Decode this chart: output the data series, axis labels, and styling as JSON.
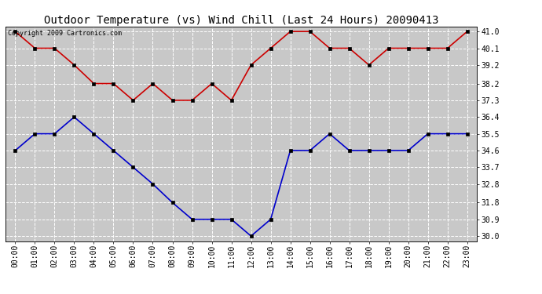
{
  "title": "Outdoor Temperature (vs) Wind Chill (Last 24 Hours) 20090413",
  "copyright": "Copyright 2009 Cartronics.com",
  "x_labels": [
    "00:00",
    "01:00",
    "02:00",
    "03:00",
    "04:00",
    "05:00",
    "06:00",
    "07:00",
    "08:00",
    "09:00",
    "10:00",
    "11:00",
    "12:00",
    "13:00",
    "14:00",
    "15:00",
    "16:00",
    "17:00",
    "18:00",
    "19:00",
    "20:00",
    "21:00",
    "22:00",
    "23:00"
  ],
  "red_data": [
    41.0,
    40.1,
    40.1,
    39.2,
    38.2,
    38.2,
    37.3,
    38.2,
    37.3,
    37.3,
    38.2,
    37.3,
    39.2,
    40.1,
    41.0,
    41.0,
    40.1,
    40.1,
    39.2,
    40.1,
    40.1,
    40.1,
    40.1,
    41.0
  ],
  "blue_data": [
    34.6,
    35.5,
    35.5,
    36.4,
    35.5,
    34.6,
    33.7,
    32.8,
    31.8,
    30.9,
    30.9,
    30.9,
    30.0,
    30.9,
    34.6,
    34.6,
    35.5,
    34.6,
    34.6,
    34.6,
    34.6,
    35.5,
    35.5,
    35.5
  ],
  "ylim": [
    29.73,
    41.27
  ],
  "yticks": [
    30.0,
    30.9,
    31.8,
    32.8,
    33.7,
    34.6,
    35.5,
    36.4,
    37.3,
    38.2,
    39.2,
    40.1,
    41.0
  ],
  "red_color": "#cc0000",
  "blue_color": "#0000cc",
  "marker_color": "#000000",
  "plot_bg_color": "#c8c8c8",
  "fig_bg_color": "#ffffff",
  "grid_color": "#ffffff",
  "title_fontsize": 10,
  "tick_fontsize": 7,
  "copyright_fontsize": 6
}
